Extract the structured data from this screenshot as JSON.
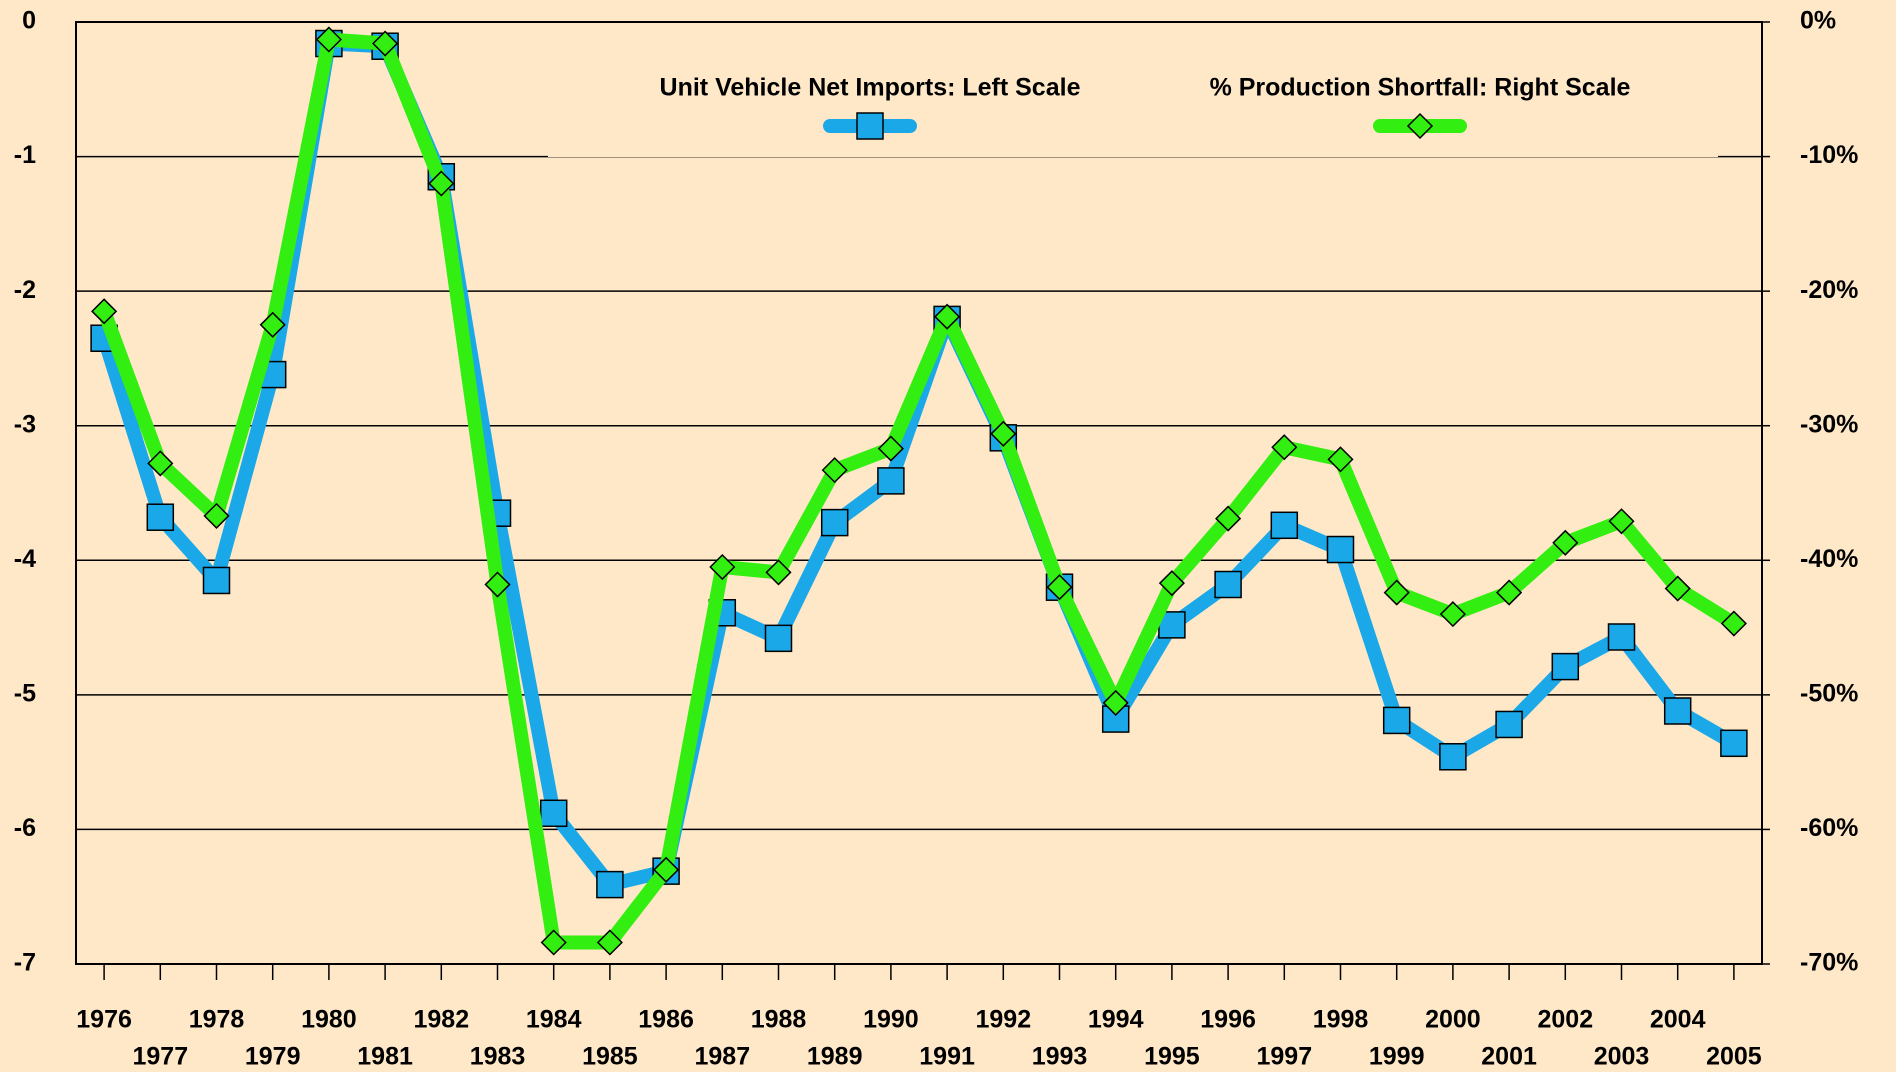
{
  "chart_data": {
    "type": "line",
    "categories": [
      "1976",
      "1977",
      "1978",
      "1979",
      "1980",
      "1981",
      "1982",
      "1983",
      "1984",
      "1985",
      "1986",
      "1987",
      "1988",
      "1989",
      "1990",
      "1991",
      "1992",
      "1993",
      "1994",
      "1995",
      "1996",
      "1997",
      "1998",
      "1999",
      "2000",
      "2001",
      "2002",
      "2003",
      "2004",
      "2005"
    ],
    "series": [
      {
        "name": "Unit Vehicle Net Imports: Left Scale",
        "color": "#1aa8e8",
        "marker": "square",
        "values": [
          -2.35,
          -3.68,
          -4.15,
          -2.62,
          -0.16,
          -0.18,
          -1.15,
          -3.65,
          -5.88,
          -6.41,
          -6.31,
          -4.39,
          -4.58,
          -3.72,
          -3.41,
          -2.21,
          -3.09,
          -4.2,
          -5.18,
          -4.48,
          -4.18,
          -3.74,
          -3.92,
          -5.19,
          -5.46,
          -5.22,
          -4.79,
          -4.57,
          -5.12,
          -5.36
        ]
      },
      {
        "name": "% Production Shortfall: Right Scale",
        "color": "#33ee11",
        "marker": "diamond",
        "axis": "y2",
        "values": [
          -21.5,
          -32.8,
          -36.7,
          -22.5,
          -1.3,
          -1.6,
          -12,
          -41.8,
          -68.4,
          -68.4,
          -63,
          -40.5,
          -40.9,
          -33.3,
          -31.7,
          -21.9,
          -30.6,
          -42,
          -50.6,
          -41.7,
          -36.9,
          -31.6,
          -32.5,
          -42.4,
          -44,
          -42.4,
          -38.7,
          -37.1,
          -42.1,
          -44.7
        ]
      }
    ],
    "ylim": [
      -7,
      0
    ],
    "yticks": [
      0,
      -1,
      -2,
      -3,
      -4,
      -5,
      -6,
      -7
    ],
    "y2lim": [
      -70,
      0
    ],
    "y2ticks": [
      {
        "value": 0,
        "label": "0%"
      },
      {
        "value": -10,
        "label": "-10%"
      },
      {
        "value": -20,
        "label": "-20%"
      },
      {
        "value": -30,
        "label": "-30%"
      },
      {
        "value": -40,
        "label": "-40%"
      },
      {
        "value": -50,
        "label": "-50%"
      },
      {
        "value": -60,
        "label": "-60%"
      },
      {
        "value": -70,
        "label": "-70%"
      }
    ],
    "grid": true,
    "legend": "upper center"
  }
}
